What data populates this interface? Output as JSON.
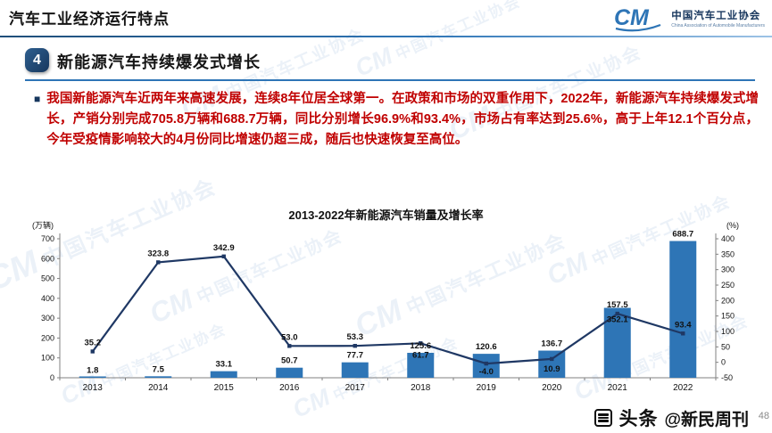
{
  "header": {
    "title": "汽车工业经济运行特点",
    "logo": {
      "monogram": "CM",
      "org_cn": "中国汽车工业协会",
      "org_en": "China Association of Automobile Manufacturers"
    }
  },
  "section": {
    "number": "4",
    "title": "新能源汽车持续爆发式增长"
  },
  "body": {
    "bullet": "■",
    "paragraph": "我国新能源汽车近两年来高速发展，连续8年位居全球第一。在政策和市场的双重作用下，2022年，新能源汽车持续爆发式增长，产销分别完成705.8万辆和688.7万辆，同比分别增长96.9%和93.4%，市场占有率达到25.6%，高于上年12.1个百分点，今年受疫情影响较大的4月份同比增速仍超三成，随后也快速恢复至高位。"
  },
  "chart_data": {
    "type": "bar",
    "subtype": "bar+line combo",
    "title": "2013-2022年新能源汽车销量及增长率",
    "left_axis_label": "(万辆)",
    "right_axis_label": "(%)",
    "categories": [
      "2013",
      "2014",
      "2015",
      "2016",
      "2017",
      "2018",
      "2019",
      "2020",
      "2021",
      "2022"
    ],
    "series": [
      {
        "name": "销量(万辆)",
        "type": "bar",
        "axis": "left",
        "color": "#2e75b6",
        "values": [
          1.8,
          7.5,
          33.1,
          50.7,
          77.7,
          125.6,
          120.6,
          136.7,
          352.1,
          688.7
        ]
      },
      {
        "name": "增长率(%)",
        "type": "line",
        "axis": "right",
        "color": "#1f3864",
        "values": [
          35.2,
          323.8,
          342.9,
          53.0,
          53.3,
          61.7,
          -4.0,
          10.9,
          157.5,
          93.4
        ]
      }
    ],
    "left_axis": {
      "min": 0,
      "max": 700,
      "step": 100
    },
    "right_axis": {
      "min": -50,
      "max": 400,
      "step": 50
    },
    "grid": false,
    "legend": "none"
  },
  "colors": {
    "accent_blue": "#2e75b6",
    "navy": "#17375e",
    "body_red": "#c00000"
  },
  "watermark": {
    "monogram": "CM",
    "text": "中国汽车工业协会"
  },
  "footer": {
    "brand": "头条",
    "handle": "@新民周刊",
    "page": "48"
  }
}
